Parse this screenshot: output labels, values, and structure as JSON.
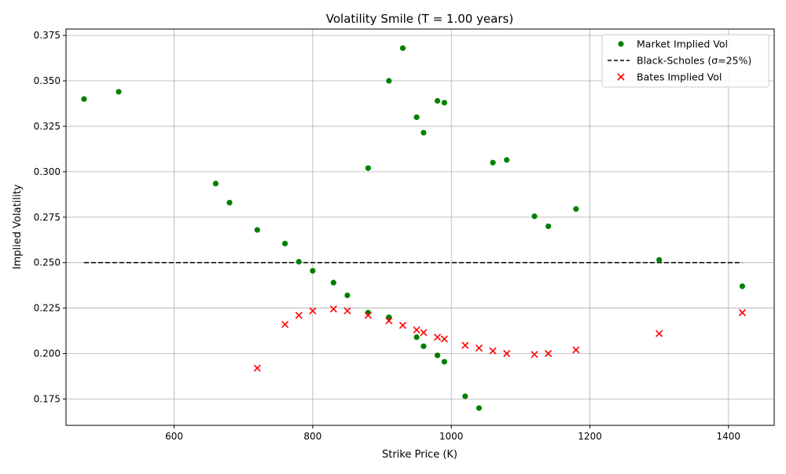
{
  "chart_data": {
    "type": "scatter",
    "title": "Volatility Smile (T = 1.00 years)",
    "xlabel": "Strike Price (K)",
    "ylabel": "Implied Volatility",
    "xlim": [
      444,
      1466
    ],
    "ylim": [
      0.1605,
      0.3785
    ],
    "xticks": [
      600,
      800,
      1000,
      1200,
      1400
    ],
    "yticks": [
      0.175,
      0.2,
      0.225,
      0.25,
      0.275,
      0.3,
      0.325,
      0.35,
      0.375
    ],
    "grid": true,
    "legend_position": "top-right",
    "series": [
      {
        "name": "Market Implied Vol",
        "marker": "circle",
        "color": "#008000",
        "points": [
          [
            470,
            0.34
          ],
          [
            520,
            0.344
          ],
          [
            660,
            0.2935
          ],
          [
            680,
            0.283
          ],
          [
            720,
            0.268
          ],
          [
            760,
            0.2605
          ],
          [
            780,
            0.2505
          ],
          [
            800,
            0.2455
          ],
          [
            830,
            0.239
          ],
          [
            850,
            0.232
          ],
          [
            880,
            0.302
          ],
          [
            880,
            0.2225
          ],
          [
            910,
            0.35
          ],
          [
            910,
            0.22
          ],
          [
            930,
            0.368
          ],
          [
            950,
            0.33
          ],
          [
            950,
            0.209
          ],
          [
            960,
            0.3215
          ],
          [
            960,
            0.204
          ],
          [
            980,
            0.339
          ],
          [
            980,
            0.199
          ],
          [
            990,
            0.338
          ],
          [
            990,
            0.1955
          ],
          [
            1020,
            0.1765
          ],
          [
            1040,
            0.17
          ],
          [
            1060,
            0.305
          ],
          [
            1080,
            0.3065
          ],
          [
            1120,
            0.2755
          ],
          [
            1140,
            0.27
          ],
          [
            1180,
            0.2795
          ],
          [
            1300,
            0.2515
          ],
          [
            1420,
            0.237
          ]
        ]
      },
      {
        "name": "Black-Scholes (σ=25%)",
        "marker": "dashed-line",
        "color": "#000000",
        "points": [
          [
            470,
            0.25
          ],
          [
            1420,
            0.25
          ]
        ]
      },
      {
        "name": "Bates Implied Vol",
        "marker": "x",
        "color": "#ff0000",
        "points": [
          [
            720,
            0.192
          ],
          [
            760,
            0.216
          ],
          [
            780,
            0.221
          ],
          [
            800,
            0.2235
          ],
          [
            830,
            0.2245
          ],
          [
            850,
            0.2235
          ],
          [
            880,
            0.221
          ],
          [
            910,
            0.218
          ],
          [
            930,
            0.2155
          ],
          [
            950,
            0.213
          ],
          [
            960,
            0.2115
          ],
          [
            980,
            0.209
          ],
          [
            990,
            0.208
          ],
          [
            1020,
            0.2045
          ],
          [
            1040,
            0.203
          ],
          [
            1060,
            0.2015
          ],
          [
            1080,
            0.2
          ],
          [
            1120,
            0.1995
          ],
          [
            1140,
            0.2
          ],
          [
            1180,
            0.202
          ],
          [
            1300,
            0.211
          ],
          [
            1420,
            0.2225
          ]
        ]
      }
    ]
  }
}
